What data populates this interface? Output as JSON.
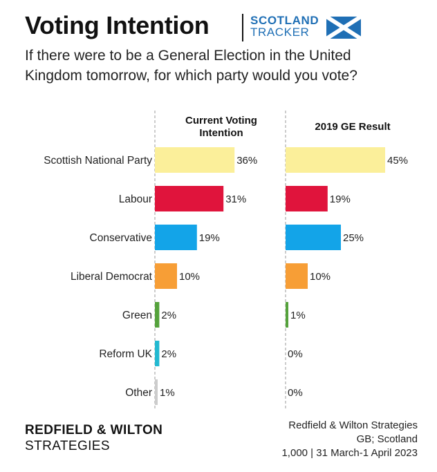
{
  "header": {
    "title": "Voting Intention",
    "tracker_line1": "SCOTLAND",
    "tracker_line2": "TRACKER",
    "flag_icon": "scotland-saltire-flag-icon"
  },
  "question": "If there were to be a General Election in the United Kingdom tomorrow, for which party would you vote?",
  "chart_data": {
    "type": "bar",
    "orientation": "horizontal",
    "categories": [
      "Scottish National Party",
      "Labour",
      "Conservative",
      "Liberal Democrat",
      "Green",
      "Reform UK",
      "Other"
    ],
    "colors": [
      "#fbef9a",
      "#e0143c",
      "#13a4e8",
      "#f79e36",
      "#55a23c",
      "#22b9d1",
      "#cccccc"
    ],
    "xlim": [
      0,
      50
    ],
    "grid": false,
    "legend": "none",
    "series": [
      {
        "name": "Current Voting Intention",
        "values": [
          36,
          31,
          19,
          10,
          2,
          2,
          1
        ],
        "labels": [
          "36%",
          "31%",
          "19%",
          "10%",
          "2%",
          "2%",
          "1%"
        ]
      },
      {
        "name": "2019 GE Result",
        "values": [
          45,
          19,
          25,
          10,
          1,
          0,
          0
        ],
        "labels": [
          "45%",
          "19%",
          "25%",
          "10%",
          "1%",
          "0%",
          "0%"
        ]
      }
    ]
  },
  "footer": {
    "logo_line1": "REDFIELD & WILTON",
    "logo_line2": "STRATEGIES",
    "source_line1": "Redfield & Wilton Strategies",
    "source_line2": "GB; Scotland",
    "source_line3": "1,000 | 31 March-1 April 2023"
  }
}
